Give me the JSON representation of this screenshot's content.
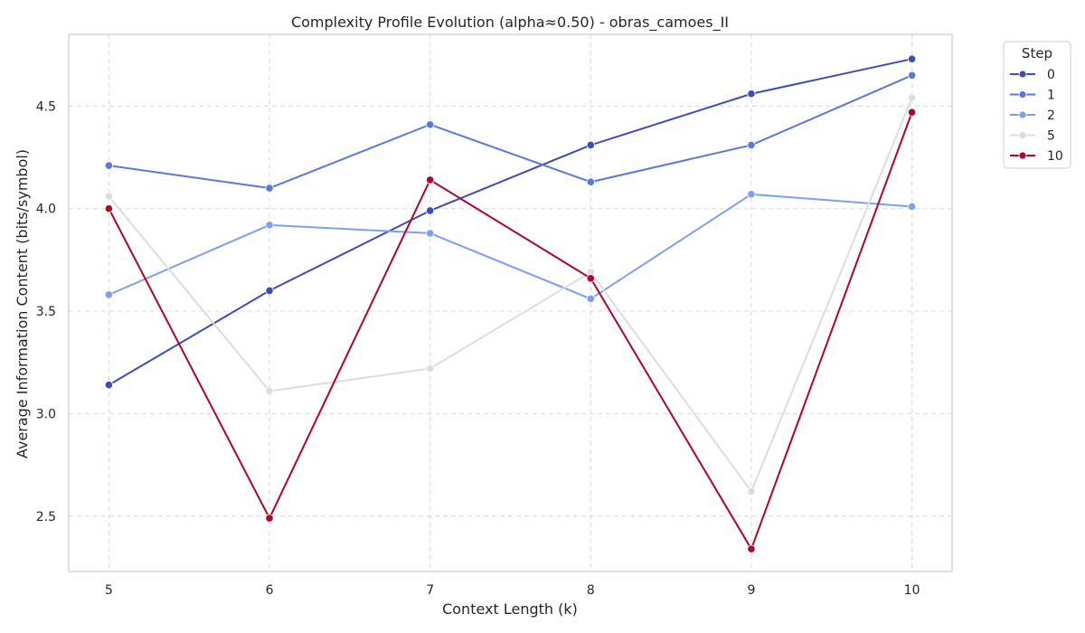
{
  "chart_data": {
    "type": "line",
    "title": "Complexity Profile Evolution (alpha≈0.50) - obras_camoes_II",
    "xlabel": "Context Length (k)",
    "ylabel": "Average Information Content (bits/symbol)",
    "x": [
      5,
      6,
      7,
      8,
      9,
      10
    ],
    "x_ticks": [
      "5",
      "6",
      "7",
      "8",
      "9",
      "10"
    ],
    "y_ticks": [
      "2.5",
      "3.0",
      "3.5",
      "4.0",
      "4.5"
    ],
    "xlim": [
      4.75,
      10.25
    ],
    "ylim": [
      2.23,
      4.85
    ],
    "grid": true,
    "legend": {
      "title": "Step",
      "placement": "outside top-right"
    },
    "series": [
      {
        "name": "0",
        "color": "#3b4cc0",
        "values": [
          3.14,
          3.6,
          3.99,
          4.31,
          4.56,
          4.73
        ]
      },
      {
        "name": "1",
        "color": "#5977e3",
        "values": [
          4.21,
          4.1,
          4.41,
          4.13,
          4.31,
          4.65
        ]
      },
      {
        "name": "2",
        "color": "#7b9ff9",
        "values": [
          3.58,
          3.92,
          3.88,
          3.56,
          4.07,
          4.01
        ]
      },
      {
        "name": "5",
        "color": "#dddcdc",
        "values": [
          4.06,
          3.11,
          3.22,
          3.69,
          2.62,
          4.54
        ]
      },
      {
        "name": "10",
        "color": "#b40426",
        "values": [
          4.0,
          2.49,
          4.14,
          3.66,
          2.34,
          4.47
        ]
      }
    ]
  }
}
